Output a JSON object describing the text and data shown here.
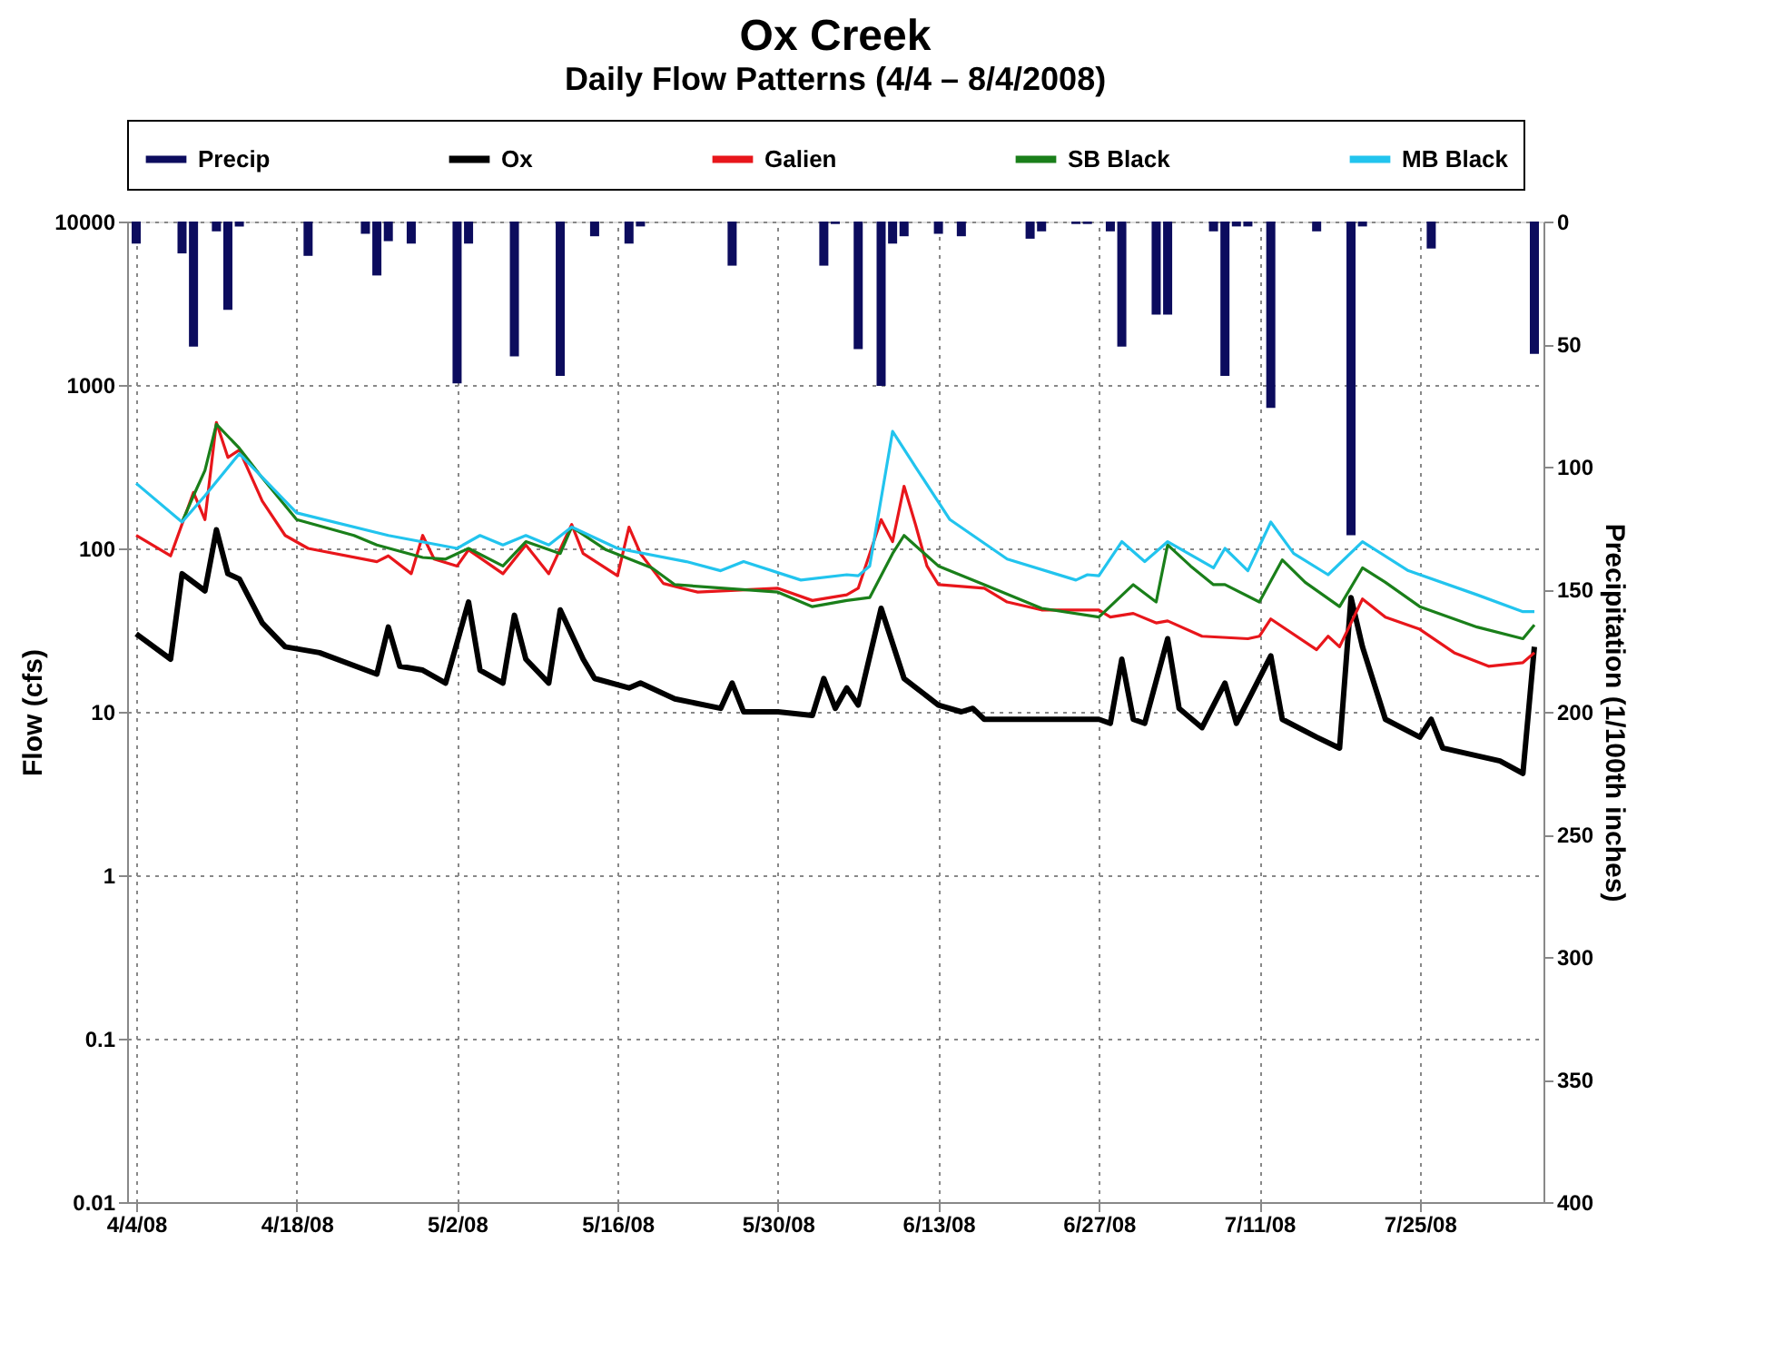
{
  "chart_data": {
    "type": "line",
    "title": "Ox Creek",
    "subtitle": "Daily Flow Patterns (4/4 – 8/4/2008)",
    "ylabel": "Flow (cfs)",
    "y2label": "Precipitation (1/100th inches)",
    "xlim": [
      "2008-04-04",
      "2008-08-04"
    ],
    "xticks": [
      {
        "value": "2008-04-04",
        "label": "4/4/08"
      },
      {
        "value": "2008-04-18",
        "label": "4/18/08"
      },
      {
        "value": "2008-05-02",
        "label": "5/2/08"
      },
      {
        "value": "2008-05-16",
        "label": "5/16/08"
      },
      {
        "value": "2008-05-30",
        "label": "5/30/08"
      },
      {
        "value": "2008-06-13",
        "label": "6/13/08"
      },
      {
        "value": "2008-06-27",
        "label": "6/27/08"
      },
      {
        "value": "2008-07-11",
        "label": "7/11/08"
      },
      {
        "value": "2008-07-25",
        "label": "7/25/08"
      }
    ],
    "ylim": [
      0.01,
      10000
    ],
    "yticks": [
      0.01,
      0.1,
      1,
      10,
      100,
      1000,
      10000
    ],
    "log": "y",
    "y2lim": [
      400,
      0
    ],
    "y2ticks": [
      0,
      50,
      100,
      150,
      200,
      250,
      300,
      350,
      400
    ],
    "grid": true,
    "legend": "top",
    "series": [
      {
        "name": "Precip",
        "type": "bar",
        "axis": "y2",
        "color": "#0c0c5e",
        "x": [
          "2008-04-04",
          "2008-04-08",
          "2008-04-09",
          "2008-04-11",
          "2008-04-12",
          "2008-04-13",
          "2008-04-19",
          "2008-04-24",
          "2008-04-25",
          "2008-04-26",
          "2008-04-28",
          "2008-05-02",
          "2008-05-03",
          "2008-05-07",
          "2008-05-11",
          "2008-05-14",
          "2008-05-17",
          "2008-05-18",
          "2008-05-26",
          "2008-06-03",
          "2008-06-04",
          "2008-06-06",
          "2008-06-08",
          "2008-06-09",
          "2008-06-10",
          "2008-06-13",
          "2008-06-15",
          "2008-06-21",
          "2008-06-22",
          "2008-06-25",
          "2008-06-26",
          "2008-06-28",
          "2008-06-29",
          "2008-07-02",
          "2008-07-03",
          "2008-07-07",
          "2008-07-08",
          "2008-07-09",
          "2008-07-10",
          "2008-07-12",
          "2008-07-16",
          "2008-07-19",
          "2008-07-20",
          "2008-07-26",
          "2008-08-04"
        ],
        "values": [
          9,
          13,
          51,
          4,
          36,
          2,
          14,
          5,
          22,
          8,
          9,
          66,
          9,
          55,
          63,
          6,
          9,
          2,
          18,
          18,
          1,
          52,
          67,
          9,
          6,
          5,
          6,
          7,
          4,
          1,
          1,
          4,
          51,
          38,
          38,
          4,
          63,
          2,
          2,
          76,
          4,
          128,
          2,
          11,
          54
        ]
      },
      {
        "name": "Ox",
        "color": "#000000",
        "x": [
          "2008-04-04",
          "2008-04-07",
          "2008-04-08",
          "2008-04-10",
          "2008-04-11",
          "2008-04-12",
          "2008-04-13",
          "2008-04-15",
          "2008-04-17",
          "2008-04-20",
          "2008-04-25",
          "2008-04-26",
          "2008-04-27",
          "2008-04-29",
          "2008-05-01",
          "2008-05-03",
          "2008-05-04",
          "2008-05-06",
          "2008-05-07",
          "2008-05-08",
          "2008-05-10",
          "2008-05-11",
          "2008-05-13",
          "2008-05-14",
          "2008-05-17",
          "2008-05-18",
          "2008-05-21",
          "2008-05-25",
          "2008-05-26",
          "2008-05-27",
          "2008-05-30",
          "2008-06-02",
          "2008-06-03",
          "2008-06-04",
          "2008-06-05",
          "2008-06-06",
          "2008-06-08",
          "2008-06-10",
          "2008-06-13",
          "2008-06-15",
          "2008-06-16",
          "2008-06-17",
          "2008-06-22",
          "2008-06-27",
          "2008-06-28",
          "2008-06-29",
          "2008-06-30",
          "2008-07-01",
          "2008-07-03",
          "2008-07-04",
          "2008-07-06",
          "2008-07-08",
          "2008-07-09",
          "2008-07-12",
          "2008-07-13",
          "2008-07-16",
          "2008-07-18",
          "2008-07-19",
          "2008-07-20",
          "2008-07-22",
          "2008-07-25",
          "2008-07-26",
          "2008-07-27",
          "2008-08-01",
          "2008-08-03",
          "2008-08-04"
        ],
        "values": [
          30,
          21,
          70,
          55,
          130,
          70,
          65,
          35,
          25,
          23,
          17,
          33,
          19,
          18,
          15,
          47,
          18,
          15,
          39,
          21,
          15,
          42,
          21,
          16,
          14,
          15,
          12,
          10.5,
          15,
          10,
          10,
          9.5,
          16,
          10.5,
          14,
          11,
          43,
          16,
          11,
          10,
          10.5,
          9,
          9,
          9,
          8.5,
          21,
          9,
          8.5,
          28,
          10.5,
          8,
          15,
          8.5,
          22,
          9,
          7,
          6,
          50,
          25,
          9,
          7,
          9,
          6,
          5,
          4.2,
          25
        ]
      },
      {
        "name": "Galien",
        "color": "#e8161b",
        "x": [
          "2008-04-04",
          "2008-04-07",
          "2008-04-09",
          "2008-04-10",
          "2008-04-11",
          "2008-04-12",
          "2008-04-13",
          "2008-04-15",
          "2008-04-17",
          "2008-04-19",
          "2008-04-25",
          "2008-04-26",
          "2008-04-28",
          "2008-04-29",
          "2008-04-30",
          "2008-05-02",
          "2008-05-03",
          "2008-05-06",
          "2008-05-08",
          "2008-05-10",
          "2008-05-12",
          "2008-05-13",
          "2008-05-16",
          "2008-05-17",
          "2008-05-18",
          "2008-05-20",
          "2008-05-23",
          "2008-05-30",
          "2008-06-02",
          "2008-06-05",
          "2008-06-06",
          "2008-06-08",
          "2008-06-09",
          "2008-06-10",
          "2008-06-11",
          "2008-06-12",
          "2008-06-13",
          "2008-06-17",
          "2008-06-19",
          "2008-06-22",
          "2008-06-27",
          "2008-06-28",
          "2008-06-30",
          "2008-07-02",
          "2008-07-03",
          "2008-07-06",
          "2008-07-10",
          "2008-07-11",
          "2008-07-12",
          "2008-07-16",
          "2008-07-17",
          "2008-07-18",
          "2008-07-20",
          "2008-07-22",
          "2008-07-25",
          "2008-07-28",
          "2008-07-31",
          "2008-08-03",
          "2008-08-04"
        ],
        "values": [
          120,
          90,
          220,
          150,
          590,
          360,
          400,
          195,
          120,
          100,
          83,
          90,
          70,
          120,
          86,
          78,
          98,
          70,
          105,
          70,
          140,
          93,
          68,
          135,
          93,
          61,
          54,
          57,
          48,
          52,
          57,
          150,
          110,
          240,
          140,
          78,
          60,
          57,
          47,
          42,
          42,
          38,
          40,
          35,
          36,
          29,
          28,
          29,
          37,
          24,
          29,
          25,
          49,
          38,
          32,
          23,
          19,
          20,
          23
        ]
      },
      {
        "name": "SB Black",
        "color": "#1a7f1a",
        "x": [
          "2008-04-08",
          "2008-04-09",
          "2008-04-10",
          "2008-04-11",
          "2008-04-13",
          "2008-04-15",
          "2008-04-18",
          "2008-04-23",
          "2008-04-25",
          "2008-04-29",
          "2008-05-01",
          "2008-05-03",
          "2008-05-06",
          "2008-05-08",
          "2008-05-11",
          "2008-05-12",
          "2008-05-15",
          "2008-05-19",
          "2008-05-21",
          "2008-05-30",
          "2008-06-02",
          "2008-06-05",
          "2008-06-07",
          "2008-06-09",
          "2008-06-10",
          "2008-06-13",
          "2008-06-17",
          "2008-06-22",
          "2008-06-27",
          "2008-06-30",
          "2008-07-02",
          "2008-07-03",
          "2008-07-05",
          "2008-07-07",
          "2008-07-08",
          "2008-07-11",
          "2008-07-13",
          "2008-07-15",
          "2008-07-18",
          "2008-07-20",
          "2008-07-22",
          "2008-07-25",
          "2008-07-30",
          "2008-08-03",
          "2008-08-04"
        ],
        "values": [
          145,
          210,
          300,
          575,
          410,
          270,
          150,
          120,
          105,
          88,
          86,
          100,
          78,
          110,
          93,
          135,
          98,
          76,
          60,
          54,
          44,
          48,
          50,
          93,
          120,
          78,
          60,
          43,
          38,
          60,
          47,
          105,
          78,
          60,
          60,
          47,
          85,
          62,
          44,
          76,
          62,
          44,
          33,
          28,
          34
        ]
      },
      {
        "name": "MB Black",
        "color": "#22c4ee",
        "x": [
          "2008-04-04",
          "2008-04-08",
          "2008-04-10",
          "2008-04-13",
          "2008-04-18",
          "2008-04-26",
          "2008-05-02",
          "2008-05-04",
          "2008-05-06",
          "2008-05-08",
          "2008-05-10",
          "2008-05-12",
          "2008-05-16",
          "2008-05-22",
          "2008-05-25",
          "2008-05-27",
          "2008-06-01",
          "2008-06-05",
          "2008-06-06",
          "2008-06-07",
          "2008-06-09",
          "2008-06-11",
          "2008-06-14",
          "2008-06-19",
          "2008-06-25",
          "2008-06-26",
          "2008-06-27",
          "2008-06-29",
          "2008-07-01",
          "2008-07-03",
          "2008-07-07",
          "2008-07-08",
          "2008-07-10",
          "2008-07-12",
          "2008-07-14",
          "2008-07-17",
          "2008-07-20",
          "2008-07-24",
          "2008-07-30",
          "2008-08-03",
          "2008-08-04"
        ],
        "values": [
          250,
          145,
          210,
          380,
          165,
          120,
          100,
          120,
          105,
          120,
          105,
          135,
          100,
          83,
          73,
          83,
          64,
          69,
          68,
          78,
          520,
          315,
          150,
          86,
          64,
          69,
          68,
          110,
          83,
          110,
          76,
          100,
          73,
          145,
          93,
          69,
          110,
          73,
          52,
          41,
          41
        ]
      }
    ]
  }
}
